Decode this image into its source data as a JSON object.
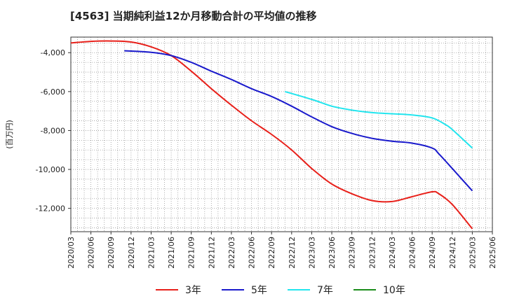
{
  "title": "[4563]  当期純利益12か月移動合計の平均値の推移",
  "chart_data": {
    "type": "line",
    "title": "[4563]  当期純利益12か月移動合計の平均値の推移",
    "xlabel": "",
    "ylabel": "(百万円)",
    "ylim": [
      -13200,
      -3200
    ],
    "yticks": [
      -4000,
      -6000,
      -8000,
      -10000,
      -12000
    ],
    "ytick_labels": [
      "-4,000",
      "-6,000",
      "-8,000",
      "-10,000",
      "-12,000"
    ],
    "x_start": "2020/03",
    "x_end": "2025/06",
    "xtick_labels": [
      "2020/03",
      "2020/06",
      "2020/09",
      "2020/12",
      "2021/03",
      "2021/06",
      "2021/09",
      "2021/12",
      "2022/03",
      "2022/06",
      "2022/09",
      "2022/12",
      "2023/03",
      "2023/06",
      "2023/09",
      "2023/12",
      "2024/03",
      "2024/06",
      "2024/09",
      "2024/12",
      "2025/03",
      "2025/06"
    ],
    "grid": true,
    "legend_position": "bottom",
    "series": [
      {
        "name": "3年",
        "color": "#e8201a",
        "x": [
          "2020/03",
          "2020/06",
          "2020/09",
          "2020/12",
          "2021/03",
          "2021/06",
          "2021/09",
          "2021/12",
          "2022/03",
          "2022/06",
          "2022/09",
          "2022/12",
          "2023/03",
          "2023/06",
          "2023/09",
          "2023/12",
          "2024/03",
          "2024/06",
          "2024/09",
          "2024/10",
          "2024/12",
          "2025/03"
        ],
        "values": [
          -3500,
          -3420,
          -3400,
          -3450,
          -3700,
          -4150,
          -4950,
          -5850,
          -6700,
          -7500,
          -8200,
          -9000,
          -9950,
          -10750,
          -11250,
          -11600,
          -11650,
          -11400,
          -11150,
          -11250,
          -11800,
          -13050
        ]
      },
      {
        "name": "5年",
        "color": "#1a1acc",
        "x": [
          "2020/11",
          "2021/03",
          "2021/06",
          "2021/09",
          "2021/12",
          "2022/03",
          "2022/06",
          "2022/09",
          "2022/12",
          "2023/03",
          "2023/06",
          "2023/09",
          "2023/12",
          "2024/03",
          "2024/06",
          "2024/09",
          "2024/10",
          "2024/12",
          "2025/03"
        ],
        "values": [
          -3900,
          -3980,
          -4150,
          -4500,
          -4950,
          -5380,
          -5850,
          -6250,
          -6750,
          -7300,
          -7800,
          -8150,
          -8400,
          -8550,
          -8650,
          -8900,
          -9200,
          -9950,
          -11100
        ]
      },
      {
        "name": "7年",
        "color": "#22e5ee",
        "x": [
          "2022/11",
          "2023/03",
          "2023/06",
          "2023/09",
          "2023/12",
          "2024/03",
          "2024/06",
          "2024/09",
          "2024/11",
          "2024/12",
          "2025/03"
        ],
        "values": [
          -6000,
          -6400,
          -6750,
          -6950,
          -7080,
          -7140,
          -7200,
          -7350,
          -7700,
          -7950,
          -8900
        ]
      },
      {
        "name": "10年",
        "color": "#1a8c1a",
        "x": [],
        "values": []
      }
    ]
  }
}
